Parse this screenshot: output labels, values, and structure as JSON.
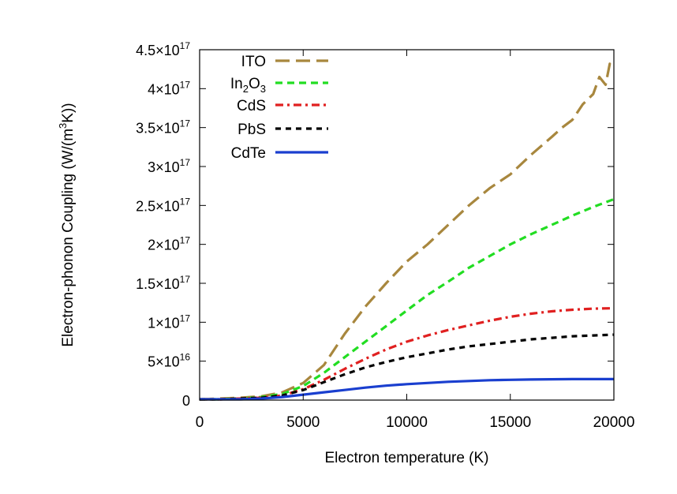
{
  "chart_data": {
    "type": "line",
    "title": "",
    "xlabel": "Electron temperature (K)",
    "ylabel": "Electron-phonon Coupling (W/(m³K))",
    "xlim": [
      0,
      20000
    ],
    "ylim": [
      0,
      4.5e+17
    ],
    "grid": false,
    "legend_position": "top-left",
    "x_ticks": [
      {
        "value": 0,
        "label": "0"
      },
      {
        "value": 5000,
        "label": "5000"
      },
      {
        "value": 10000,
        "label": "10000"
      },
      {
        "value": 15000,
        "label": "15000"
      },
      {
        "value": 20000,
        "label": "20000"
      }
    ],
    "y_ticks": [
      {
        "value": 0,
        "mant": "0",
        "exp": ""
      },
      {
        "value": 5e+16,
        "mant": "5×10",
        "exp": "16"
      },
      {
        "value": 1e+17,
        "mant": "1×10",
        "exp": "17"
      },
      {
        "value": 1.5e+17,
        "mant": "1.5×10",
        "exp": "17"
      },
      {
        "value": 2e+17,
        "mant": "2×10",
        "exp": "17"
      },
      {
        "value": 2.5e+17,
        "mant": "2.5×10",
        "exp": "17"
      },
      {
        "value": 3e+17,
        "mant": "3×10",
        "exp": "17"
      },
      {
        "value": 3.5e+17,
        "mant": "3.5×10",
        "exp": "17"
      },
      {
        "value": 4e+17,
        "mant": "4×10",
        "exp": "17"
      },
      {
        "value": 4.5e+17,
        "mant": "4.5×10",
        "exp": "17"
      }
    ],
    "series": [
      {
        "name": "ITO",
        "color": "#a8873e",
        "dash": "long-dash",
        "x": [
          0,
          1000,
          2000,
          3000,
          4000,
          5000,
          6000,
          7000,
          8000,
          9000,
          10000,
          11000,
          12000,
          13000,
          14000,
          15000,
          16000,
          17000,
          17500,
          18000,
          18500,
          19000,
          19300,
          19600,
          19800,
          20000
        ],
        "y": [
          1000000000000000.0,
          2000000000000000.0,
          3000000000000000.0,
          5000000000000000.0,
          1e+16,
          2.2e+16,
          4.5e+16,
          8.5e+16,
          1.2e+17,
          1.5e+17,
          1.78e+17,
          2e+17,
          2.25e+17,
          2.5e+17,
          2.72e+17,
          2.9e+17,
          3.15e+17,
          3.38e+17,
          3.5e+17,
          3.6e+17,
          3.8e+17,
          3.93e+17,
          4.15e+17,
          4.05e+17,
          4.32e+17,
          4.25e+17
        ]
      },
      {
        "name": "In2O3",
        "sub": "2",
        "sub2": "3",
        "color": "#22dd22",
        "dash": "dash",
        "x": [
          0,
          1000,
          2000,
          3000,
          4000,
          5000,
          6000,
          7000,
          8000,
          9000,
          10000,
          11000,
          12000,
          13000,
          14000,
          15000,
          16000,
          17000,
          18000,
          19000,
          20000
        ],
        "y": [
          1000000000000000.0,
          1000000000000000.0,
          2000000000000000.0,
          4000000000000000.0,
          8000000000000000.0,
          1.8e+16,
          3.5e+16,
          5.5e+16,
          7.5e+16,
          9.5e+16,
          1.15e+17,
          1.35e+17,
          1.52e+17,
          1.7e+17,
          1.85e+17,
          2e+17,
          2.13e+17,
          2.25e+17,
          2.37e+17,
          2.48e+17,
          2.58e+17
        ]
      },
      {
        "name": "CdS",
        "color": "#e02020",
        "dash": "dash-dot",
        "x": [
          0,
          1000,
          2000,
          3000,
          4000,
          5000,
          6000,
          7000,
          8000,
          9000,
          10000,
          11000,
          12000,
          13000,
          14000,
          15000,
          16000,
          17000,
          18000,
          19000,
          20000
        ],
        "y": [
          1000000000000000.0,
          1000000000000000.0,
          2000000000000000.0,
          3000000000000000.0,
          6000000000000000.0,
          1.4e+16,
          2.6e+16,
          4e+16,
          5.3e+16,
          6.5e+16,
          7.5e+16,
          8.3e+16,
          9e+16,
          9.6e+16,
          1.02e+17,
          1.07e+17,
          1.11e+17,
          1.14e+17,
          1.16e+17,
          1.175e+17,
          1.18e+17
        ]
      },
      {
        "name": "PbS",
        "color": "#000000",
        "dash": "short-dash",
        "x": [
          0,
          1000,
          2000,
          3000,
          4000,
          5000,
          6000,
          7000,
          8000,
          9000,
          10000,
          11000,
          12000,
          13000,
          14000,
          15000,
          16000,
          17000,
          18000,
          19000,
          20000
        ],
        "y": [
          1000000000000000.0,
          1000000000000000.0,
          2000000000000000.0,
          3000000000000000.0,
          6000000000000000.0,
          1.3e+16,
          2.3e+16,
          3.3e+16,
          4.2e+16,
          4.9e+16,
          5.5e+16,
          6e+16,
          6.5e+16,
          6.9e+16,
          7.2e+16,
          7.5e+16,
          7.8e+16,
          8e+16,
          8.2e+16,
          8.3e+16,
          8.4e+16
        ]
      },
      {
        "name": "CdTe",
        "color": "#1a3fcf",
        "dash": "solid",
        "x": [
          0,
          1000,
          2000,
          3000,
          4000,
          5000,
          6000,
          7000,
          8000,
          9000,
          10000,
          11000,
          12000,
          13000,
          14000,
          15000,
          16000,
          17000,
          18000,
          19000,
          20000
        ],
        "y": [
          1000000000000000.0,
          1000000000000000.0,
          1000000000000000.0,
          2000000000000000.0,
          4000000000000000.0,
          7000000000000000.0,
          1e+16,
          1.3e+16,
          1.6e+16,
          1.85e+16,
          2.05e+16,
          2.2e+16,
          2.35e+16,
          2.45e+16,
          2.55e+16,
          2.6e+16,
          2.65e+16,
          2.68e+16,
          2.7e+16,
          2.7e+16,
          2.7e+16
        ]
      }
    ]
  }
}
